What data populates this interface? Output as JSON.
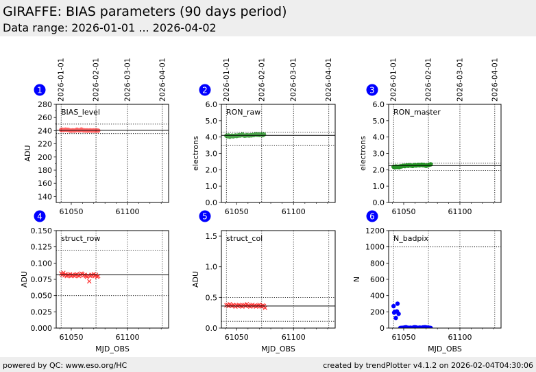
{
  "header": {
    "title": "GIRAFFE: BIAS parameters (90 days period)",
    "subtitle": "Data range: 2026-01-01 ... 2026-04-02"
  },
  "footer": {
    "left": "powered by QC: www.eso.org/HC",
    "right": "created by trendPlotter v4.1.2 on 2026-02-04T04:30:06"
  },
  "colors": {
    "badge": "#0000ff",
    "red": "#ff0000",
    "green": "#008000",
    "blue": "#0000ff"
  },
  "chart_data": [
    {
      "type": "scatter",
      "panel": "1",
      "label": "BIAS_level",
      "ylabel": "ADU",
      "xlabel": "",
      "xlim": [
        61036.6,
        61136.6
      ],
      "ylim": [
        131,
        280
      ],
      "yticks": [
        140,
        160,
        180,
        200,
        220,
        240,
        260,
        280
      ],
      "ytick_labels": [
        "140",
        "160",
        "180",
        "200",
        "220",
        "240",
        "260",
        "280"
      ],
      "yminor": true,
      "xticks": [
        61050,
        61100
      ],
      "xtick_labels": [
        "61050",
        "61100"
      ],
      "date_ticks": [
        61041,
        61072,
        61100,
        61131
      ],
      "date_labels": [
        "2026-01-01",
        "2026-02-01",
        "2026-03-01",
        "2026-04-01"
      ],
      "show_dates": true,
      "show_xlabel": false,
      "marker": "o",
      "color": "#ff0000",
      "alpha": 0.6,
      "ref_line": 240.5,
      "limits": [
        250,
        235.5
      ],
      "x": [
        61041,
        61042,
        61043,
        61044,
        61045,
        61046,
        61047,
        61048,
        61049,
        61050,
        61051,
        61052,
        61053,
        61054,
        61055,
        61056,
        61057,
        61058,
        61059,
        61060,
        61061,
        61062,
        61063,
        61064,
        61065,
        61066,
        61067,
        61068,
        61069,
        61070,
        61071,
        61072,
        61073,
        61074
      ],
      "y": [
        241.2,
        241.5,
        241.0,
        241.3,
        241.6,
        241.1,
        241.4,
        240.8,
        240.2,
        240.0,
        240.5,
        240.3,
        240.1,
        240.6,
        241.5,
        240.9,
        240.4,
        240.8,
        241.8,
        240.9,
        240.3,
        240.5,
        240.2,
        240.4,
        240.0,
        240.3,
        240.5,
        240.1,
        240.2,
        240.4,
        240.0,
        240.3,
        240.2,
        240.1
      ]
    },
    {
      "type": "scatter",
      "panel": "2",
      "label": "RON_raw",
      "ylabel": "electrons",
      "xlabel": "",
      "xlim": [
        61036.6,
        61136.6
      ],
      "ylim": [
        0,
        6
      ],
      "yticks": [
        0,
        1,
        2,
        3,
        4,
        5,
        6
      ],
      "ytick_labels": [
        "0.0",
        "1.0",
        "2.0",
        "3.0",
        "4.0",
        "5.0",
        "6.0"
      ],
      "yminor": false,
      "xticks": [
        61050,
        61100
      ],
      "xtick_labels": [
        "61050",
        "61100"
      ],
      "date_ticks": [
        61041,
        61072,
        61100,
        61131
      ],
      "date_labels": [
        "2026-01-01",
        "2026-02-01",
        "2026-03-01",
        "2026-04-01"
      ],
      "show_dates": true,
      "show_xlabel": false,
      "marker": "o",
      "color": "#008000",
      "alpha": 0.7,
      "ref_line": 4.1,
      "limits": [
        4.3,
        3.5
      ],
      "x": [
        61041,
        61042,
        61043,
        61044,
        61045,
        61046,
        61047,
        61048,
        61049,
        61050,
        61051,
        61052,
        61053,
        61054,
        61055,
        61056,
        61057,
        61058,
        61059,
        61060,
        61061,
        61062,
        61063,
        61064,
        61065,
        61066,
        61067,
        61068,
        61069,
        61070,
        61071,
        61072,
        61073,
        61074
      ],
      "y": [
        4.08,
        4.05,
        4.1,
        4.02,
        4.06,
        4.09,
        4.04,
        4.07,
        4.1,
        4.06,
        4.08,
        4.12,
        4.09,
        4.11,
        4.16,
        4.1,
        4.08,
        4.09,
        4.12,
        4.1,
        4.09,
        4.11,
        4.1,
        4.13,
        4.12,
        4.15,
        4.17,
        4.14,
        4.16,
        4.13,
        4.15,
        4.17,
        4.12,
        4.16
      ]
    },
    {
      "type": "scatter",
      "panel": "3",
      "label": "RON_master",
      "ylabel": "electrons",
      "xlabel": "",
      "xlim": [
        61036.6,
        61136.6
      ],
      "ylim": [
        0,
        6
      ],
      "yticks": [
        0,
        1,
        2,
        3,
        4,
        5,
        6
      ],
      "ytick_labels": [
        "0.0",
        "1.0",
        "2.0",
        "3.0",
        "4.0",
        "5.0",
        "6.0"
      ],
      "yminor": false,
      "xticks": [
        61050,
        61100
      ],
      "xtick_labels": [
        "61050",
        "61100"
      ],
      "date_ticks": [
        61041,
        61072,
        61100,
        61131
      ],
      "date_labels": [
        "2026-01-01",
        "2026-02-01",
        "2026-03-01",
        "2026-04-01"
      ],
      "show_dates": true,
      "show_xlabel": false,
      "marker": "o",
      "color": "#008000",
      "alpha": 0.85,
      "ref_line": 2.25,
      "limits": [
        2.4,
        1.95
      ],
      "x": [
        61041,
        61042,
        61043,
        61044,
        61045,
        61046,
        61047,
        61048,
        61049,
        61050,
        61051,
        61052,
        61053,
        61054,
        61055,
        61056,
        61057,
        61058,
        61059,
        61060,
        61061,
        61062,
        61063,
        61064,
        61065,
        61066,
        61067,
        61068,
        61069,
        61070,
        61071,
        61072,
        61073,
        61074
      ],
      "y": [
        2.18,
        2.15,
        2.2,
        2.17,
        2.19,
        2.16,
        2.21,
        2.2,
        2.23,
        2.24,
        2.22,
        2.25,
        2.27,
        2.24,
        2.28,
        2.26,
        2.25,
        2.23,
        2.27,
        2.29,
        2.26,
        2.28,
        2.3,
        2.27,
        2.29,
        2.31,
        2.28,
        2.3,
        2.26,
        2.24,
        2.27,
        2.29,
        2.31,
        2.33
      ]
    },
    {
      "type": "scatter",
      "panel": "4",
      "label": "struct_row",
      "ylabel": "ADU",
      "xlabel": "MJD_OBS",
      "xlim": [
        61036.6,
        61136.6
      ],
      "ylim": [
        0,
        0.15
      ],
      "yticks": [
        0,
        0.025,
        0.05,
        0.075,
        0.1,
        0.125,
        0.15
      ],
      "ytick_labels": [
        "0.000",
        "0.025",
        "0.050",
        "0.075",
        "0.100",
        "0.125",
        "0.150"
      ],
      "yminor": false,
      "xticks": [
        61050,
        61100
      ],
      "xtick_labels": [
        "61050",
        "61100"
      ],
      "date_ticks": [
        61041,
        61072,
        61100,
        61131
      ],
      "date_labels": [],
      "show_dates": false,
      "show_xlabel": true,
      "marker": "x",
      "color": "#ff0000",
      "alpha": 0.8,
      "ref_line": 0.082,
      "limits": [
        0.12,
        0.05
      ],
      "x": [
        61041,
        61042,
        61043,
        61044,
        61045,
        61046,
        61047,
        61048,
        61049,
        61050,
        61051,
        61052,
        61053,
        61054,
        61055,
        61056,
        61057,
        61058,
        61059,
        61060,
        61061,
        61062,
        61063,
        61064,
        61065,
        61066,
        61067,
        61068,
        61069,
        61070,
        61071,
        61072,
        61073,
        61074
      ],
      "y": [
        0.084,
        0.082,
        0.085,
        0.081,
        0.083,
        0.08,
        0.082,
        0.081,
        0.083,
        0.08,
        0.082,
        0.081,
        0.08,
        0.082,
        0.083,
        0.081,
        0.08,
        0.082,
        0.084,
        0.083,
        0.081,
        0.082,
        0.08,
        0.079,
        0.081,
        0.072,
        0.08,
        0.082,
        0.081,
        0.083,
        0.08,
        0.082,
        0.079,
        0.08
      ]
    },
    {
      "type": "scatter",
      "panel": "5",
      "label": "struct_col",
      "ylabel": "ADU",
      "xlabel": "MJD_OBS",
      "xlim": [
        61036.6,
        61136.6
      ],
      "ylim": [
        0,
        1.59
      ],
      "yticks": [
        0,
        0.5,
        1.0,
        1.5
      ],
      "ytick_labels": [
        "0.0",
        "0.5",
        "1.0",
        "1.5"
      ],
      "yminor": false,
      "xticks": [
        61050,
        61100
      ],
      "xtick_labels": [
        "61050",
        "61100"
      ],
      "date_ticks": [
        61041,
        61072,
        61100,
        61131
      ],
      "date_labels": [],
      "show_dates": false,
      "show_xlabel": true,
      "marker": "x",
      "color": "#ff0000",
      "alpha": 0.8,
      "ref_line": 0.36,
      "limits": [
        0.5,
        0.11
      ],
      "x": [
        61041,
        61042,
        61043,
        61044,
        61045,
        61046,
        61047,
        61048,
        61049,
        61050,
        61051,
        61052,
        61053,
        61054,
        61055,
        61056,
        61057,
        61058,
        61059,
        61060,
        61061,
        61062,
        61063,
        61064,
        61065,
        61066,
        61067,
        61068,
        61069,
        61070,
        61071,
        61072,
        61073,
        61074,
        61075
      ],
      "y": [
        0.37,
        0.38,
        0.36,
        0.39,
        0.37,
        0.36,
        0.38,
        0.37,
        0.35,
        0.37,
        0.36,
        0.38,
        0.37,
        0.36,
        0.35,
        0.37,
        0.38,
        0.36,
        0.39,
        0.37,
        0.36,
        0.35,
        0.37,
        0.38,
        0.36,
        0.37,
        0.35,
        0.36,
        0.37,
        0.38,
        0.36,
        0.35,
        0.37,
        0.36,
        0.33
      ]
    },
    {
      "type": "scatter",
      "panel": "6",
      "label": "N_badpix",
      "ylabel": "N",
      "xlabel": "MJD_OBS",
      "xlim": [
        61036.6,
        61136.6
      ],
      "ylim": [
        0,
        1200
      ],
      "yticks": [
        0,
        200,
        400,
        600,
        800,
        1000,
        1200
      ],
      "ytick_labels": [
        "0",
        "200",
        "400",
        "600",
        "800",
        "1000",
        "1200"
      ],
      "yminor": false,
      "xticks": [
        61050,
        61100
      ],
      "xtick_labels": [
        "61050",
        "61100"
      ],
      "date_ticks": [
        61041,
        61072,
        61100,
        61131
      ],
      "date_labels": [],
      "show_dates": false,
      "show_xlabel": true,
      "marker": "o",
      "color": "#0000ff",
      "alpha": 1,
      "ref_line": null,
      "limits": [
        1000
      ],
      "x": [
        61041,
        61041.5,
        61042,
        61043,
        61044,
        61044.5,
        61045.5,
        61047,
        61048,
        61049,
        61050,
        61051,
        61052,
        61053,
        61054,
        61055,
        61056,
        61057,
        61058,
        61059,
        61060,
        61061,
        61062,
        61063,
        61064,
        61065,
        61066,
        61067,
        61068,
        61069,
        61070,
        61071,
        61072,
        61073,
        61074
      ],
      "y": [
        270,
        190,
        200,
        125,
        205,
        300,
        175,
        2,
        3,
        4,
        5,
        8,
        10,
        6,
        4,
        3,
        5,
        2,
        4,
        9,
        10,
        8,
        4,
        3,
        6,
        5,
        3,
        8,
        9,
        10,
        8,
        6,
        5,
        4,
        2
      ]
    }
  ]
}
